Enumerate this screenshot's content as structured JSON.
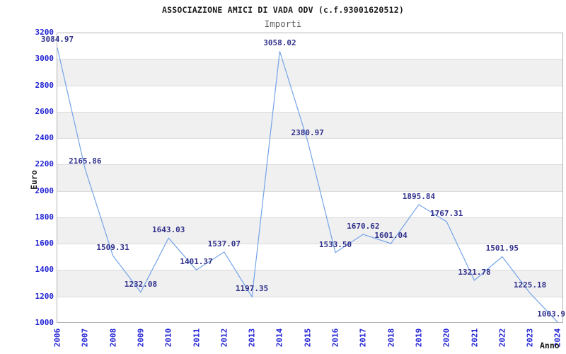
{
  "chart_data": {
    "type": "line",
    "title": "ASSOCIAZIONE AMICI DI VADA ODV (c.f.93001620512)",
    "subtitle": "Importi",
    "xlabel": "Anno",
    "ylabel": "Euro",
    "categories": [
      "2006",
      "2007",
      "2008",
      "2009",
      "2010",
      "2011",
      "2012",
      "2013",
      "2014",
      "2015",
      "2016",
      "2017",
      "2018",
      "2019",
      "2020",
      "2021",
      "2022",
      "2023",
      "2024"
    ],
    "series": [
      {
        "name": "Importi",
        "values": [
          3084.97,
          2165.86,
          1509.31,
          1232.08,
          1643.03,
          1401.37,
          1537.07,
          1197.35,
          3058.02,
          2380.97,
          1533.5,
          1670.62,
          1601.04,
          1895.84,
          1767.31,
          1321.78,
          1501.95,
          1225.18,
          1003.9
        ],
        "value_labels": [
          "3084.97",
          "2165.86",
          "1509.31",
          "1232.08",
          "1643.03",
          "1401.37",
          "1537.07",
          "1197.35",
          "3058.02",
          "2380.97",
          "1533.50",
          "1670.62",
          "1601.04",
          "1895.84",
          "1767.31",
          "1321.78",
          "1501.95",
          "1225.18",
          "1003.9"
        ]
      }
    ],
    "ylim": [
      1000,
      3200
    ],
    "yticks": [
      3200,
      3000,
      2800,
      2600,
      2400,
      2200,
      2000,
      1800,
      1600,
      1400,
      1200,
      1000
    ],
    "grid": "horizontal",
    "background_bands": "alternating-gray-every-200",
    "legend": "none",
    "colors": {
      "line": "#74a3e8",
      "tick_label": "#2323d4",
      "value_label": "#31318c",
      "band": "#f0f0f0",
      "gridline": "#dcdcdc",
      "plot_border": "#b4b4b4",
      "title": "#1a1a1a",
      "subtitle": "#5f5f5f",
      "axis_title": "#1a1a1a"
    }
  }
}
